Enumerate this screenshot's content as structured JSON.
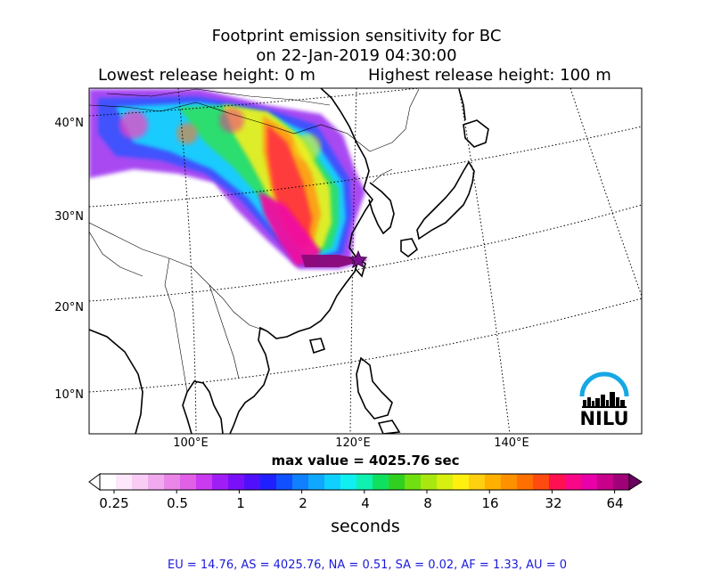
{
  "chart_data": {
    "type": "heatmap",
    "title": "Footprint emission sensitivity for BC",
    "subtitle": "on 22-Jan-2019 04:30:00",
    "lowest_release": "Lowest release height: 0 m",
    "highest_release": "Highest release height: 100 m",
    "lat_ticks": [
      "40°N",
      "30°N",
      "20°N",
      "10°N"
    ],
    "lon_ticks": [
      "100°E",
      "120°E",
      "140°E"
    ],
    "max_value_label": "max value = 4025.76 sec",
    "colorbar": {
      "ticks": [
        "0.25",
        "0.5",
        "1",
        "2",
        "4",
        "8",
        "16",
        "32",
        "64"
      ],
      "unit": "seconds",
      "scale": "log"
    },
    "release_site": {
      "lon": 121.5,
      "lat": 25.0
    },
    "regions": {
      "EU": 14.76,
      "AS": 4025.76,
      "NA": 0.51,
      "SA": 0.02,
      "AF": 1.33,
      "AU": 0
    },
    "footer": "EU = 14.76,  AS = 4025.76,  NA = 0.51,  SA = 0.02,  AF = 1.33,  AU = 0",
    "logo_text": "NILU",
    "colors": {
      "footer_text": "#1a1adc",
      "logo_arc": "#16a7e5"
    }
  }
}
